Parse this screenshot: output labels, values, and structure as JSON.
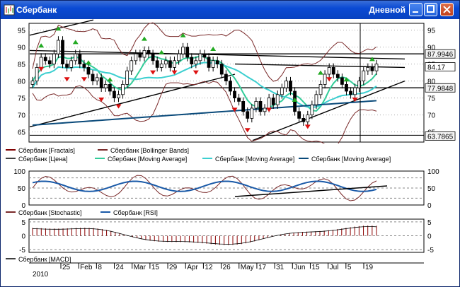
{
  "window": {
    "title": "Сбербанк",
    "period": "Дневной",
    "colors": {
      "titlebar": "#0a4ad4",
      "close": "#c0401c"
    }
  },
  "chart_data": [
    {
      "type": "candlestick",
      "panel": "price",
      "ylim": [
        62,
        97
      ],
      "y_ticks": [
        65,
        70,
        75,
        80,
        85,
        90,
        95
      ],
      "price_labels": [
        "87.9946",
        "84.17",
        "77.9848",
        "63.7865"
      ],
      "price_label_values": [
        87.9946,
        84.17,
        77.9848,
        63.7865
      ],
      "close": [
        80,
        84,
        87,
        86,
        85,
        88,
        92,
        85,
        84,
        86,
        88,
        85,
        84,
        82,
        80,
        81,
        78,
        79,
        77,
        75,
        76,
        79,
        83,
        86,
        88,
        87,
        89,
        88,
        86,
        84,
        85,
        86,
        84,
        86,
        88,
        90,
        87,
        85,
        86,
        88,
        87,
        84,
        86,
        85,
        82,
        80,
        77,
        75,
        74,
        71,
        69,
        72,
        74,
        71,
        72,
        75,
        73,
        76,
        78,
        80,
        77,
        71,
        69,
        68,
        70,
        73,
        76,
        79,
        82,
        84,
        82,
        81,
        79,
        77,
        76,
        78,
        80,
        83,
        84,
        83,
        85
      ],
      "fractal_up_x": [
        2,
        6,
        10,
        13,
        18,
        26,
        30,
        35,
        42,
        61,
        67,
        73,
        79
      ],
      "fractal_down_x": [
        2,
        8,
        12,
        16,
        20,
        28,
        33,
        38,
        47,
        50,
        55,
        64,
        69,
        75
      ],
      "legend": [
        {
          "name": "Сбербанк [Fractals]",
          "color": "#800000"
        },
        {
          "name": "Сбербанк [Bollinger Bands]",
          "color": "#7a2a2a"
        },
        {
          "name": "Сбербанк [Цена]",
          "color": "#404040"
        },
        {
          "name": "Сбербанк [Moving Average]",
          "color": "#33cc99"
        },
        {
          "name": "Сбербанк [Moving Average]",
          "color": "#3ccfd0"
        },
        {
          "name": "Сбербанк [Moving Average]",
          "color": "#0a4a7a"
        }
      ]
    },
    {
      "type": "line",
      "panel": "oscillators",
      "ylim": [
        0,
        100
      ],
      "y_ticks": [
        0,
        50,
        100
      ],
      "series": [
        {
          "name": "Сбербанк [Stochastic]",
          "color": "#7a2a2a"
        },
        {
          "name": "Сбербанк [RSI]",
          "color": "#1a5aa8"
        }
      ]
    },
    {
      "type": "bar",
      "panel": "macd",
      "ylim": [
        -6,
        6
      ],
      "y_ticks": [
        -5,
        0,
        5
      ],
      "series": [
        {
          "name": "Сбербанк [MACD]",
          "color": "#8b0000"
        }
      ],
      "x_labels": [
        "25",
        "Feb",
        "8",
        "24",
        "Mar",
        "15",
        "29",
        "Apr",
        "12",
        "26",
        "May",
        "17",
        "31",
        "Jun",
        "15",
        "Jul",
        "5",
        "19"
      ],
      "year_label": "2010"
    }
  ]
}
